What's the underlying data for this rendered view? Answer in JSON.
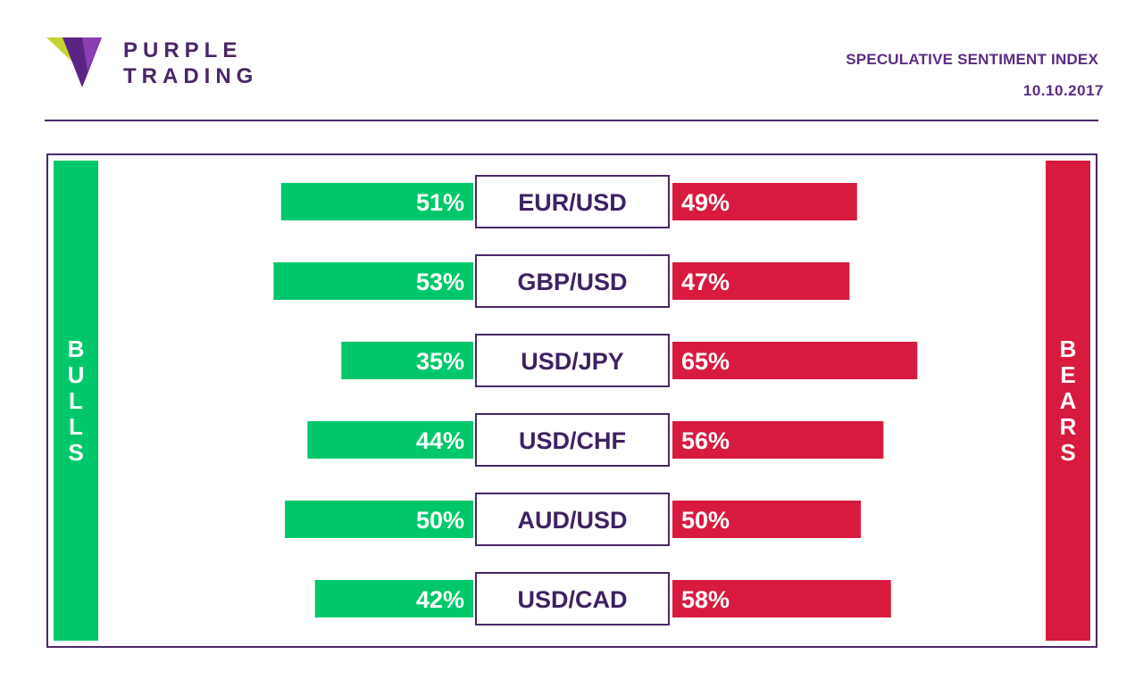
{
  "brand": {
    "line1": "PURPLE",
    "line2": "TRADING"
  },
  "header": {
    "title": "SPECULATIVE SENTIMENT INDEX",
    "date": "10.10.2017"
  },
  "labels": {
    "bulls": "BULLS",
    "bears": "BEARS"
  },
  "colors": {
    "bull": "#00c86a",
    "bear": "#d81a3f",
    "purple": "#4a2767"
  },
  "chart_data": {
    "type": "bar",
    "categories": [
      "EUR/USD",
      "GBP/USD",
      "USD/JPY",
      "USD/CHF",
      "AUD/USD",
      "USD/CAD"
    ],
    "series": [
      {
        "name": "BULLS",
        "values": [
          51,
          53,
          35,
          44,
          50,
          42
        ]
      },
      {
        "name": "BEARS",
        "values": [
          49,
          47,
          65,
          56,
          50,
          58
        ]
      }
    ],
    "value_suffix": "%",
    "title": "SPECULATIVE SENTIMENT INDEX",
    "legend": "sides"
  }
}
